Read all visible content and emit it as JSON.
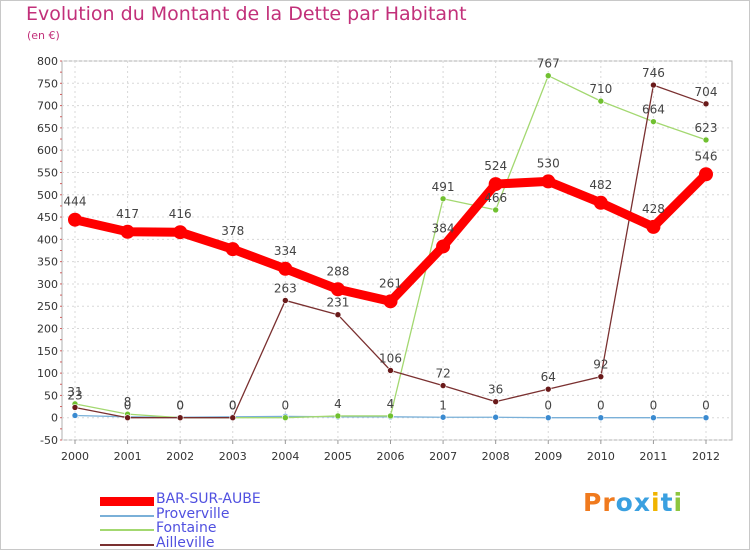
{
  "title": "Evolution du Montant de la Dette par Habitant",
  "subtitle": "(en €)",
  "logo": {
    "chars": [
      "P",
      "r",
      "o",
      "x",
      "i",
      "t",
      "i"
    ],
    "colors": [
      "#f07a1e",
      "#f07a1e",
      "#3aa0e0",
      "#3aa0e0",
      "#f0b400",
      "#3aa0e0",
      "#8dc63f"
    ]
  },
  "chart_data": {
    "type": "line",
    "title": "Evolution du Montant de la Dette par Habitant",
    "subtitle": "(en €)",
    "xlabel": "",
    "ylabel": "",
    "categories": [
      "2000",
      "2001",
      "2002",
      "2003",
      "2004",
      "2005",
      "2006",
      "2007",
      "2008",
      "2009",
      "2010",
      "2011",
      "2012"
    ],
    "ylim": [
      -50,
      800
    ],
    "yticks": [
      -50,
      0,
      50,
      100,
      150,
      200,
      250,
      300,
      350,
      400,
      450,
      500,
      550,
      600,
      650,
      700,
      750,
      800
    ],
    "grid": true,
    "legend_position": "bottom-left",
    "series": [
      {
        "name": "BAR-SUR-AUBE",
        "color": "#ff0000",
        "marker_color": "#ff0000",
        "emphasis": true,
        "values": [
          444,
          417,
          416,
          378,
          334,
          288,
          261,
          384,
          524,
          530,
          482,
          428,
          546
        ]
      },
      {
        "name": "Proverville",
        "color": "#7ab0d8",
        "marker_color": "#3a8ad0",
        "values": [
          5,
          2,
          1,
          2,
          3,
          2,
          2,
          1,
          1,
          0,
          0,
          0,
          0
        ]
      },
      {
        "name": "Fontaine",
        "color": "#a3d870",
        "marker_color": "#70c030",
        "values": [
          31,
          8,
          0,
          0,
          0,
          4,
          4,
          491,
          466,
          767,
          710,
          664,
          623
        ]
      },
      {
        "name": "Ailleville",
        "color": "#7a3030",
        "marker_color": "#6a1a1a",
        "values": [
          23,
          0,
          0,
          0,
          263,
          231,
          106,
          72,
          36,
          64,
          92,
          746,
          704
        ]
      }
    ],
    "data_labels": [
      {
        "series": "BAR-SUR-AUBE",
        "values": [
          "444",
          "417",
          "416",
          "378",
          "334",
          "288",
          "261",
          "384",
          "524",
          "530",
          "482",
          "428",
          "546"
        ]
      },
      {
        "series": "Proverville",
        "values": [
          "",
          "",
          "",
          "",
          "",
          "",
          "",
          "1",
          "",
          "0",
          "0",
          "0",
          "0"
        ]
      },
      {
        "series": "Fontaine",
        "values": [
          "31",
          "8",
          "0",
          "0",
          "0",
          "4",
          "4",
          "491",
          "466",
          "767",
          "710",
          "664",
          "623"
        ]
      },
      {
        "series": "Ailleville",
        "values": [
          "23",
          "0",
          "0",
          "0",
          "263",
          "231",
          "106",
          "72",
          "36",
          "64",
          "92",
          "746",
          "704"
        ]
      }
    ]
  }
}
